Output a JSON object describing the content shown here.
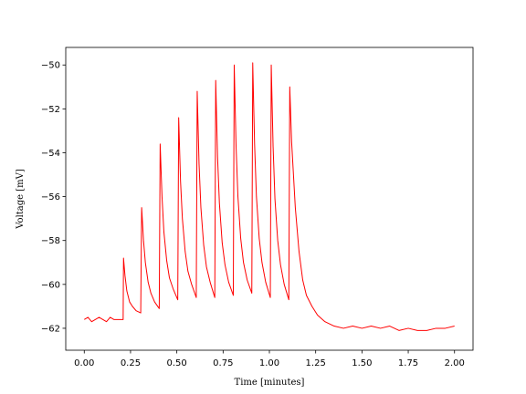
{
  "chart_data": {
    "type": "line",
    "x_label": "Time [minutes]",
    "y_label": "Voltage [mV]",
    "xlim": [
      -0.1,
      2.1
    ],
    "ylim": [
      -63.0,
      -49.2
    ],
    "xticks": [
      {
        "value": 0,
        "label": "0.00"
      },
      {
        "value": 0.25,
        "label": "0.25"
      },
      {
        "value": 0.5,
        "label": "0.50"
      },
      {
        "value": 0.75,
        "label": "0.75"
      },
      {
        "value": 1.0,
        "label": "1.00"
      },
      {
        "value": 1.25,
        "label": "1.25"
      },
      {
        "value": 1.5,
        "label": "1.50"
      },
      {
        "value": 1.75,
        "label": "1.75"
      },
      {
        "value": 2.0,
        "label": "2.00"
      }
    ],
    "yticks": [
      {
        "value": -62,
        "label": "−62"
      },
      {
        "value": -60,
        "label": "−60"
      },
      {
        "value": -58,
        "label": "−58"
      },
      {
        "value": -56,
        "label": "−56"
      },
      {
        "value": -54,
        "label": "−54"
      },
      {
        "value": -52,
        "label": "−52"
      },
      {
        "value": -50,
        "label": "−50"
      }
    ],
    "color": "#ff0000",
    "x": [
      0,
      0.02,
      0.04,
      0.06,
      0.08,
      0.1,
      0.12,
      0.14,
      0.16,
      0.18,
      0.2,
      0.21,
      0.212,
      0.22,
      0.23,
      0.245,
      0.26,
      0.28,
      0.305,
      0.31,
      0.32,
      0.33,
      0.345,
      0.36,
      0.38,
      0.405,
      0.41,
      0.42,
      0.43,
      0.445,
      0.46,
      0.48,
      0.505,
      0.51,
      0.52,
      0.53,
      0.545,
      0.56,
      0.58,
      0.605,
      0.61,
      0.62,
      0.63,
      0.645,
      0.66,
      0.68,
      0.705,
      0.71,
      0.72,
      0.73,
      0.745,
      0.76,
      0.78,
      0.805,
      0.81,
      0.82,
      0.83,
      0.845,
      0.86,
      0.88,
      0.905,
      0.91,
      0.92,
      0.93,
      0.945,
      0.96,
      0.98,
      1.005,
      1.01,
      1.02,
      1.03,
      1.045,
      1.06,
      1.08,
      1.105,
      1.11,
      1.12,
      1.14,
      1.16,
      1.18,
      1.2,
      1.23,
      1.26,
      1.3,
      1.35,
      1.4,
      1.45,
      1.5,
      1.55,
      1.6,
      1.65,
      1.7,
      1.75,
      1.8,
      1.85,
      1.9,
      1.95,
      2.0
    ],
    "values": [
      -61.6,
      -61.5,
      -61.7,
      -61.6,
      -61.5,
      -61.6,
      -61.7,
      -61.5,
      -61.6,
      -61.6,
      -61.6,
      -61.6,
      -58.8,
      -59.6,
      -60.3,
      -60.8,
      -61.0,
      -61.2,
      -61.3,
      -56.5,
      -58.0,
      -59.0,
      -59.9,
      -60.4,
      -60.8,
      -61.1,
      -53.6,
      -56.0,
      -57.6,
      -58.9,
      -59.7,
      -60.2,
      -60.7,
      -52.4,
      -55.3,
      -57.0,
      -58.5,
      -59.4,
      -60.0,
      -60.6,
      -51.2,
      -54.5,
      -56.5,
      -58.2,
      -59.2,
      -59.9,
      -60.6,
      -50.7,
      -54.2,
      -56.3,
      -58.1,
      -59.1,
      -59.9,
      -60.5,
      -50.0,
      -53.7,
      -56.0,
      -57.9,
      -59.0,
      -59.8,
      -60.4,
      -49.9,
      -53.6,
      -56.0,
      -57.9,
      -59.0,
      -59.9,
      -60.6,
      -50.0,
      -53.7,
      -56.1,
      -58.0,
      -59.1,
      -60.0,
      -60.7,
      -51.0,
      -53.5,
      -56.5,
      -58.5,
      -59.8,
      -60.5,
      -61.0,
      -61.4,
      -61.7,
      -61.9,
      -62.0,
      -61.9,
      -62.0,
      -61.9,
      -62.0,
      -61.9,
      -62.1,
      -62.0,
      -62.1,
      -62.1,
      -62.0,
      -62.0,
      -61.9
    ]
  }
}
